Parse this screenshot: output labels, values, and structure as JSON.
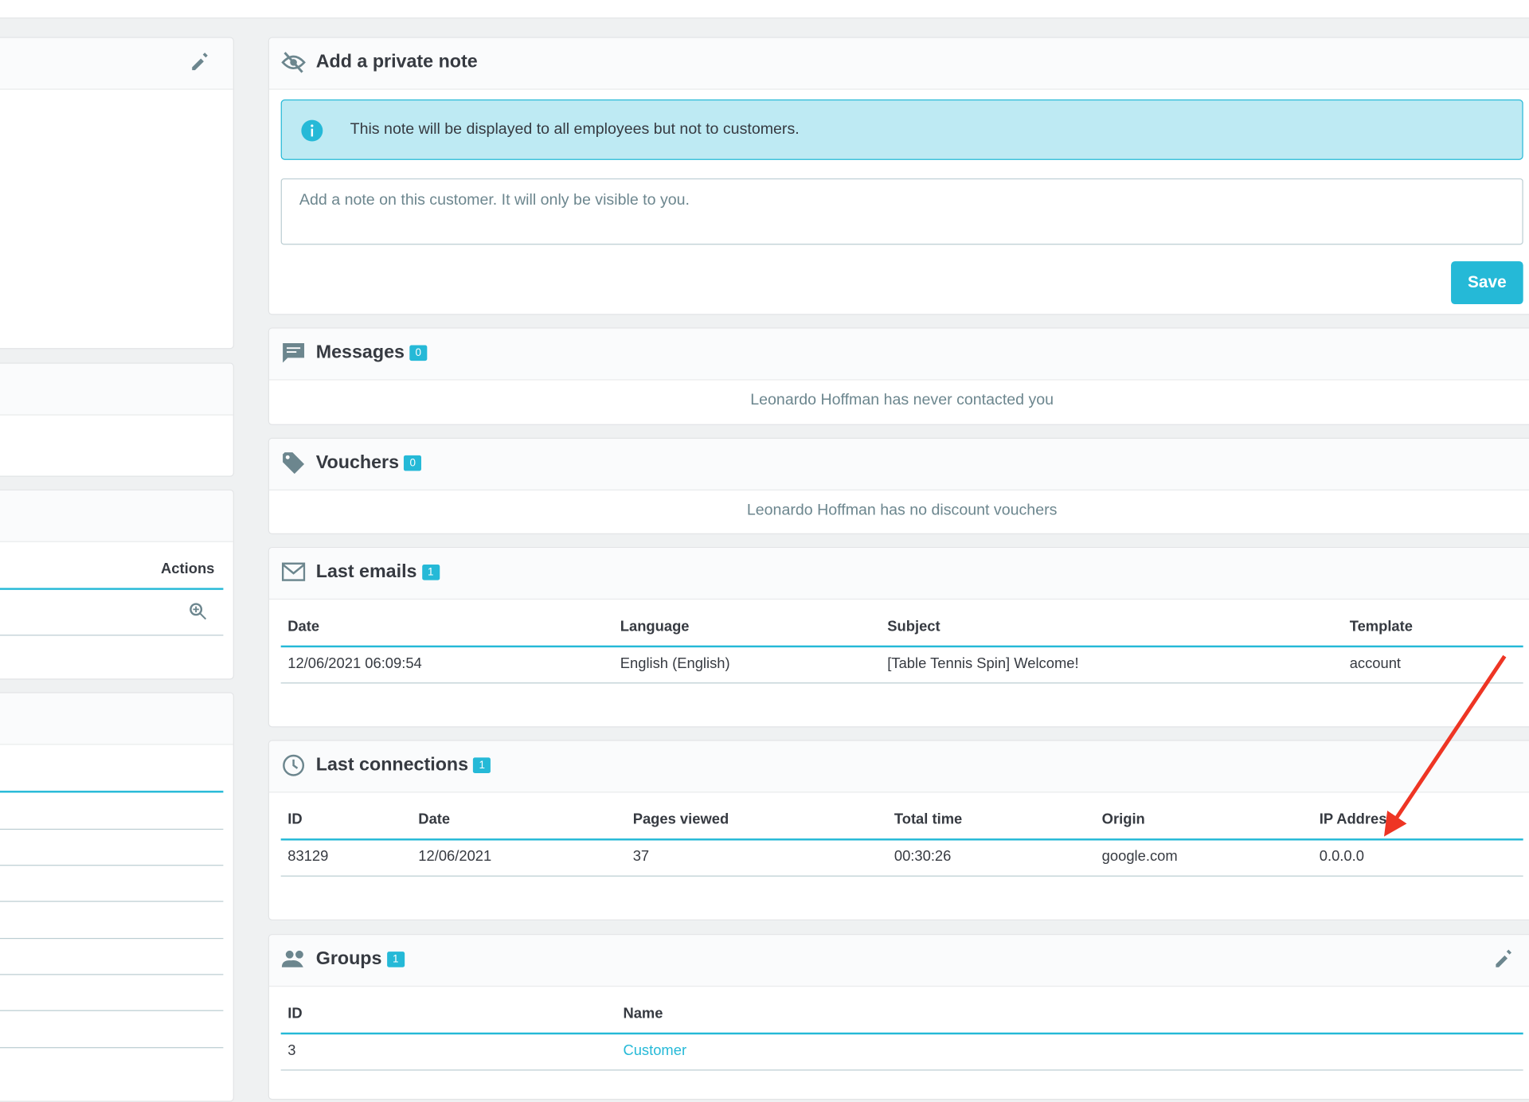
{
  "left": {
    "actions_header": "Actions"
  },
  "note": {
    "title": "Add a private note",
    "info": "This note will be displayed to all employees but not to customers.",
    "placeholder": "Add a note on this customer. It will only be visible to you.",
    "button": "Save"
  },
  "messages": {
    "title": "Messages",
    "count": "0",
    "empty": "Leonardo Hoffman has never contacted you"
  },
  "vouchers": {
    "title": "Vouchers",
    "count": "0",
    "empty": "Leonardo Hoffman has no discount vouchers"
  },
  "emails": {
    "title": "Last emails",
    "count": "1",
    "columns": [
      "Date",
      "Language",
      "Subject",
      "Template"
    ],
    "rows": [
      [
        "12/06/2021 06:09:54",
        "English (English)",
        "[Table Tennis Spin] Welcome!",
        "account"
      ]
    ]
  },
  "connections": {
    "title": "Last connections",
    "count": "1",
    "columns": [
      "ID",
      "Date",
      "Pages viewed",
      "Total time",
      "Origin",
      "IP Address"
    ],
    "rows": [
      [
        "83129",
        "12/06/2021",
        "37",
        "00:30:26",
        "google.com",
        "0.0.0.0"
      ]
    ]
  },
  "groups": {
    "title": "Groups",
    "count": "1",
    "columns": [
      "ID",
      "Name"
    ],
    "rows": [
      [
        "3",
        "Customer"
      ]
    ]
  }
}
